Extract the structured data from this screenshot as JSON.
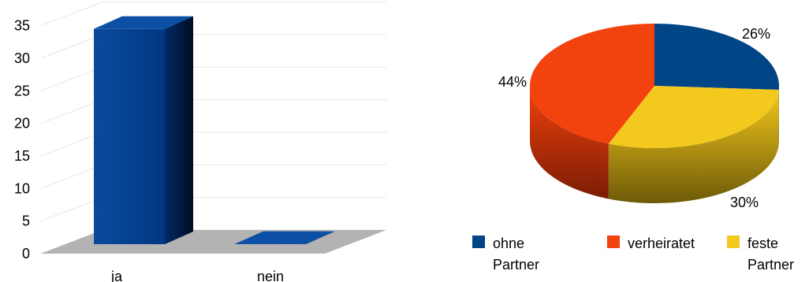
{
  "chart_data": [
    {
      "type": "bar",
      "categories": [
        "ja",
        "nein"
      ],
      "values": [
        34.5,
        1.5
      ],
      "ylim": [
        0,
        35
      ],
      "yticks": [
        0,
        5,
        10,
        15,
        20,
        25,
        30,
        35
      ],
      "grid": true,
      "title": "",
      "xlabel": "",
      "ylabel": "",
      "colors": {
        "bar": "#003e8f",
        "floor": "#b3b3b3",
        "grid": "#e6e6e6"
      }
    },
    {
      "type": "pie",
      "slices": [
        {
          "name_line1": "ohne",
          "name_line2": "Partner",
          "value": 26,
          "label": "26%",
          "color": "#004586"
        },
        {
          "name_line1": "feste",
          "name_line2": "Partner",
          "value": 30,
          "label": "30%",
          "color": "#f4c91d"
        },
        {
          "name_line1": "verheiratet",
          "name_line2": "",
          "value": 44,
          "label": "44%",
          "color": "#f2420e"
        }
      ],
      "legend": "bottom",
      "title": ""
    }
  ]
}
